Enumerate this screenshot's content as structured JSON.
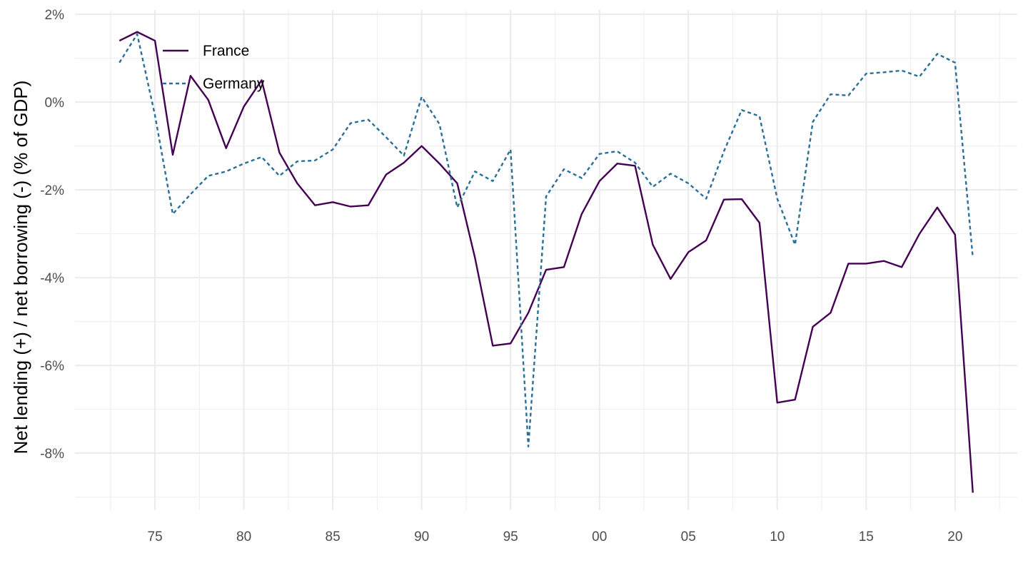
{
  "chart_data": {
    "type": "line",
    "title": "",
    "xlabel": "",
    "ylabel": "Net lending (+) / net borrowing (-) (% of GDP)",
    "x": [
      1973,
      1974,
      1975,
      1976,
      1977,
      1978,
      1979,
      1980,
      1981,
      1982,
      1983,
      1984,
      1985,
      1986,
      1987,
      1988,
      1989,
      1990,
      1991,
      1992,
      1993,
      1994,
      1995,
      1996,
      1997,
      1998,
      1999,
      2000,
      2001,
      2002,
      2003,
      2004,
      2005,
      2006,
      2007,
      2008,
      2009,
      2010,
      2011,
      2012,
      2013,
      2014,
      2015,
      2016,
      2017,
      2018,
      2019,
      2020,
      2021
    ],
    "series": [
      {
        "name": "France",
        "color": "#440154",
        "dash": "solid",
        "values": [
          1.4,
          1.6,
          1.4,
          -1.2,
          0.6,
          0.05,
          -1.05,
          -0.1,
          0.5,
          -1.15,
          -1.85,
          -2.35,
          -2.28,
          -2.38,
          -2.35,
          -1.65,
          -1.38,
          -1.0,
          -1.4,
          -1.85,
          -3.55,
          -5.55,
          -5.5,
          -4.8,
          -3.82,
          -3.76,
          -2.55,
          -1.8,
          -1.4,
          -1.45,
          -3.25,
          -4.03,
          -3.42,
          -3.15,
          -2.22,
          -2.21,
          -2.75,
          -6.85,
          -6.78,
          -5.12,
          -4.8,
          -3.68,
          -3.68,
          -3.62,
          -3.76,
          -3.0,
          -2.4,
          -3.02,
          -8.9
        ]
      },
      {
        "name": "Germany",
        "color": "#2a6f97",
        "dash": "dotted",
        "values": [
          0.9,
          1.55,
          -0.3,
          -2.55,
          -2.1,
          -1.68,
          -1.58,
          -1.4,
          -1.25,
          -1.68,
          -1.35,
          -1.33,
          -1.08,
          -0.48,
          -0.4,
          -0.8,
          -1.22,
          0.12,
          -0.5,
          -2.4,
          -1.58,
          -1.8,
          -1.08,
          -7.85,
          -2.15,
          -1.53,
          -1.73,
          -1.18,
          -1.12,
          -1.38,
          -1.93,
          -1.63,
          -1.85,
          -2.2,
          -1.12,
          -0.18,
          -0.32,
          -2.2,
          -3.25,
          -0.45,
          0.18,
          0.15,
          0.65,
          0.68,
          0.72,
          0.58,
          1.1,
          0.9,
          -3.55
        ]
      }
    ],
    "xlim": [
      1970.5,
      2023.5
    ],
    "ylim": [
      -9.3,
      2.1
    ],
    "y_ticks": [
      2,
      0,
      -2,
      -4,
      -6,
      -8
    ],
    "y_tick_labels": [
      "2%",
      "0%",
      "-2%",
      "-4%",
      "-6%",
      "-8%"
    ],
    "x_ticks": [
      1975,
      1980,
      1985,
      1990,
      1995,
      2000,
      2005,
      2010,
      2015,
      2020
    ],
    "x_tick_labels": [
      "75",
      "80",
      "85",
      "90",
      "95",
      "00",
      "05",
      "10",
      "15",
      "20"
    ],
    "grid": true,
    "legend_position": "top-left"
  }
}
